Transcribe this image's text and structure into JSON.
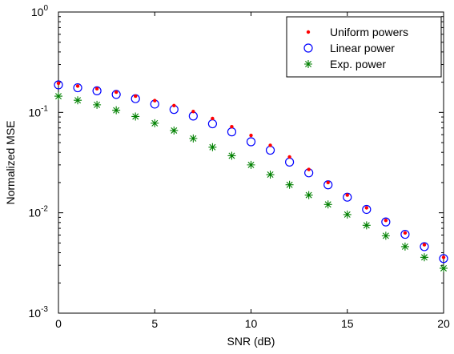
{
  "chart_data": {
    "type": "scatter",
    "xlabel": "SNR (dB)",
    "ylabel": "Normalized MSE",
    "x_scale": "linear",
    "y_scale": "log",
    "xlim": [
      0,
      20
    ],
    "ylim": [
      0.001,
      1
    ],
    "grid": false,
    "legend_position": "top-right",
    "x_ticks": [
      0,
      5,
      10,
      15,
      20
    ],
    "x_tick_labels": [
      "0",
      "5",
      "10",
      "15",
      "20"
    ],
    "y_ticks": [
      0.001,
      0.01,
      0.1,
      1
    ],
    "y_tick_labels": [
      {
        "base": "10",
        "exp": "-3"
      },
      {
        "base": "10",
        "exp": "-2"
      },
      {
        "base": "10",
        "exp": "-1"
      },
      {
        "base": "10",
        "exp": "0"
      }
    ],
    "x": [
      0,
      1,
      2,
      3,
      4,
      5,
      6,
      7,
      8,
      9,
      10,
      11,
      12,
      13,
      14,
      15,
      16,
      17,
      18,
      19,
      20
    ],
    "series": [
      {
        "name": "Uniform powers",
        "marker": "dot",
        "color": "#ff0000",
        "values": [
          0.195,
          0.183,
          0.172,
          0.159,
          0.145,
          0.131,
          0.117,
          0.102,
          0.087,
          0.072,
          0.059,
          0.047,
          0.036,
          0.027,
          0.02,
          0.015,
          0.0112,
          0.0084,
          0.0063,
          0.0048,
          0.0036
        ]
      },
      {
        "name": "Linear power",
        "marker": "circle",
        "color": "#0000ff",
        "values": [
          0.188,
          0.176,
          0.164,
          0.151,
          0.137,
          0.121,
          0.107,
          0.092,
          0.077,
          0.064,
          0.051,
          0.042,
          0.032,
          0.025,
          0.019,
          0.0143,
          0.0108,
          0.0081,
          0.0061,
          0.0046,
          0.0035
        ]
      },
      {
        "name": "Exp. power",
        "marker": "star",
        "color": "#008000",
        "values": [
          0.145,
          0.132,
          0.119,
          0.105,
          0.091,
          0.078,
          0.066,
          0.055,
          0.045,
          0.037,
          0.03,
          0.024,
          0.019,
          0.015,
          0.0121,
          0.0096,
          0.0075,
          0.0059,
          0.0046,
          0.0036,
          0.0028
        ]
      }
    ]
  }
}
